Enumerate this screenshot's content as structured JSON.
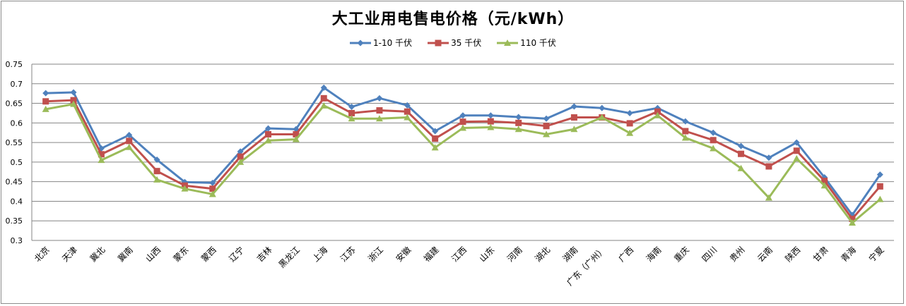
{
  "chart_data": {
    "type": "line",
    "title": "大工业用电售电价格（元/kWh）",
    "xlabel": "",
    "ylabel": "",
    "ylim": [
      0.3,
      0.75
    ],
    "yticks": [
      "0.75",
      "0.7",
      "0.65",
      "0.6",
      "0.55",
      "0.5",
      "0.45",
      "0.4",
      "0.35",
      "0.3"
    ],
    "grid": true,
    "legend_position": "top",
    "categories": [
      "北京",
      "天津",
      "冀北",
      "冀南",
      "山西",
      "蒙东",
      "蒙西",
      "辽宁",
      "吉林",
      "黑龙江",
      "上海",
      "江苏",
      "浙江",
      "安徽",
      "福建",
      "江西",
      "山东",
      "河南",
      "湖北",
      "湖南",
      "广东（广州）",
      "广西",
      "海南",
      "重庆",
      "四川",
      "贵州",
      "云南",
      "陕西",
      "甘肃",
      "青海",
      "宁夏"
    ],
    "series": [
      {
        "name": "1-10 千伏",
        "color": "#4f81bd",
        "marker": "diamond",
        "values": [
          0.676,
          0.678,
          0.535,
          0.569,
          0.506,
          0.449,
          0.447,
          0.527,
          0.586,
          0.584,
          0.69,
          0.641,
          0.663,
          0.645,
          0.579,
          0.619,
          0.619,
          0.615,
          0.611,
          0.642,
          0.638,
          0.625,
          0.638,
          0.604,
          0.575,
          0.541,
          0.511,
          0.55,
          0.461,
          0.365,
          0.468
        ]
      },
      {
        "name": "35 千伏",
        "color": "#c0504d",
        "marker": "square",
        "values": [
          0.655,
          0.658,
          0.52,
          0.554,
          0.477,
          0.44,
          0.432,
          0.514,
          0.571,
          0.571,
          0.663,
          0.625,
          0.632,
          0.629,
          0.56,
          0.603,
          0.604,
          0.6,
          0.592,
          0.614,
          0.614,
          0.599,
          0.629,
          0.579,
          0.556,
          0.521,
          0.489,
          0.529,
          0.452,
          0.355,
          0.438
        ]
      },
      {
        "name": "110 千伏",
        "color": "#9bbb59",
        "marker": "triangle",
        "values": [
          0.635,
          0.648,
          0.505,
          0.538,
          0.455,
          0.432,
          0.418,
          0.5,
          0.555,
          0.558,
          0.644,
          0.611,
          0.611,
          0.614,
          0.537,
          0.587,
          0.589,
          0.584,
          0.571,
          0.584,
          0.614,
          0.574,
          0.619,
          0.562,
          0.535,
          0.484,
          0.409,
          0.509,
          0.44,
          0.345,
          0.405
        ]
      }
    ]
  }
}
